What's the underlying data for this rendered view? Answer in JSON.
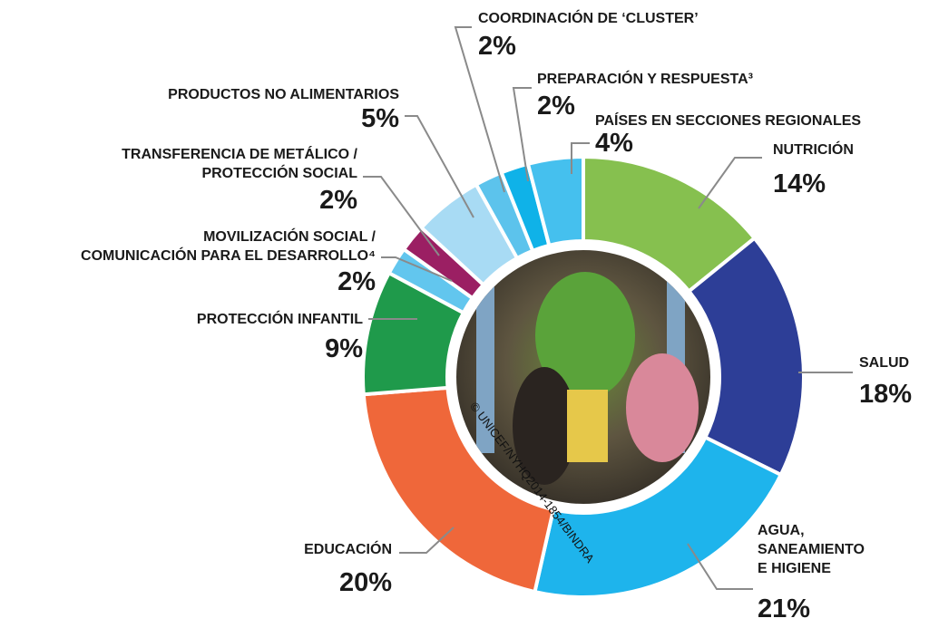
{
  "chart_data": {
    "type": "donut",
    "categories": [
      "NUTRICIÓN",
      "SALUD",
      "AGUA,\nSANEAMIENTO\nE HIGIENE",
      "EDUCACIÓN",
      "PROTECCIÓN INFANTIL",
      "MOVILIZACIÓN SOCIAL /\nCOMUNICACIÓN PARA EL DESARROLLO⁴",
      "TRANSFERENCIA DE METÁLICO /\nPROTECCIÓN SOCIAL",
      "PRODUCTOS NO ALIMENTARIOS",
      "COORDINACIÓN DE ‘CLUSTER’",
      "PREPARACIÓN Y RESPUESTA³",
      "PAÍSES EN SECCIONES REGIONALES"
    ],
    "values": [
      14,
      18,
      21,
      20,
      9,
      2,
      2,
      5,
      2,
      2,
      4
    ],
    "value_labels": [
      "14%",
      "18%",
      "21%",
      "20%",
      "9%",
      "2%",
      "2%",
      "5%",
      "2%",
      "2%",
      "4%"
    ],
    "colors": [
      "#86c04f",
      "#2d3e97",
      "#1eb4ec",
      "#ef673a",
      "#1f9a4b",
      "#62c6ee",
      "#9b1f63",
      "#a8dbf4",
      "#5cc3ec",
      "#0fb2e8",
      "#45c0ee"
    ],
    "photo_credit": "© UNICEF/NYHQ2014-1854/BINDRA"
  }
}
